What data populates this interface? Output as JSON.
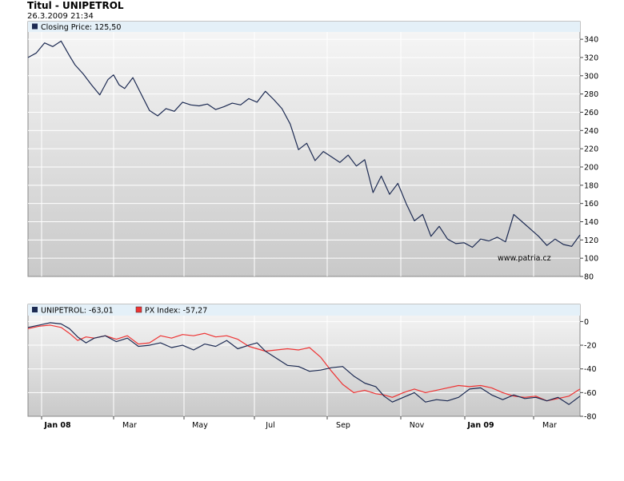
{
  "header": {
    "title": "Titul - UNIPETROL",
    "datetime": "26.3.2009 21:34"
  },
  "watermark": "www.patria.cz",
  "colors": {
    "price_line": "#1c2a52",
    "px_index_line": "#ee3333",
    "legend_bg": "#e4f0f8",
    "plot_bg_top": "#f7f7f7",
    "plot_bg_bottom": "#c9c9c9"
  },
  "chart_data": [
    {
      "type": "line",
      "legend_label": "Closing Price: 125,50",
      "y_ticks": [
        "340",
        "320",
        "300",
        "280",
        "260",
        "240",
        "220",
        "200",
        "180",
        "160",
        "140",
        "120",
        "100",
        "80"
      ],
      "ylim": [
        80,
        348
      ],
      "grid": true,
      "x_tick_labels": [
        "Jan 08",
        "Mar",
        "May",
        "Jul",
        "Sep",
        "Nov",
        "Jan 09",
        "Mar"
      ],
      "series": [
        {
          "name": "Closing Price",
          "x": [
            0,
            1.5,
            3,
            4.5,
            6,
            7.5,
            8.5,
            10,
            11.5,
            13,
            14.5,
            15.5,
            16.5,
            17.5,
            19,
            20.5,
            22,
            23.5,
            25,
            26.5,
            28,
            29.5,
            31,
            32.5,
            34,
            35.5,
            37,
            38.5,
            40,
            41.5,
            43,
            44.5,
            46,
            47.5,
            49,
            50.5,
            52,
            53.5,
            55,
            56.5,
            58,
            59.5,
            61,
            62.5,
            64,
            65.5,
            67,
            68.5,
            70,
            71.5,
            73,
            74.5,
            76,
            77.5,
            79,
            80.5,
            82,
            83.5,
            85,
            86.5,
            88,
            89.5,
            91,
            92.5,
            94,
            95.5,
            97,
            98.5,
            100
          ],
          "y": [
            320,
            325,
            336,
            332,
            338,
            322,
            312,
            302,
            290,
            279,
            296,
            301,
            290,
            286,
            298,
            280,
            262,
            256,
            264,
            261,
            271,
            268,
            267,
            269,
            263,
            266,
            270,
            268,
            275,
            271,
            283,
            274,
            264,
            247,
            219,
            226,
            207,
            217,
            211,
            205,
            213,
            201,
            208,
            172,
            190,
            170,
            182,
            160,
            141,
            148,
            124,
            135,
            121,
            116,
            117,
            112,
            121,
            119,
            123,
            118,
            148,
            140,
            132,
            124,
            114,
            121,
            115,
            113,
            125.5
          ]
        }
      ]
    },
    {
      "type": "line",
      "y_ticks": [
        "0",
        "-20",
        "-40",
        "-60",
        "-80"
      ],
      "ylim": [
        -80,
        5
      ],
      "grid": true,
      "x_tick_labels": [
        "Jan 08",
        "Mar",
        "May",
        "Jul",
        "Sep",
        "Nov",
        "Jan 09",
        "Mar"
      ],
      "series": [
        {
          "name": "UNIPETROL",
          "legend_label": "UNIPETROL: -63,01",
          "color": "#1c2a52",
          "x": [
            0,
            2,
            4,
            6,
            7.5,
            9,
            10.5,
            12,
            14,
            16,
            18,
            20,
            22,
            24,
            26,
            28,
            30,
            32,
            34,
            36,
            38,
            40,
            41.5,
            43,
            45,
            47,
            49,
            51,
            53,
            55,
            57,
            59,
            61,
            63,
            64.5,
            66,
            68,
            70,
            72,
            74,
            76,
            78,
            80,
            82,
            84,
            86,
            88,
            90,
            92,
            94,
            96,
            98,
            100
          ],
          "y": [
            -5,
            -3,
            -1,
            -2,
            -6,
            -13,
            -18,
            -14,
            -12,
            -17,
            -14,
            -21,
            -20,
            -18,
            -22,
            -20,
            -24,
            -19,
            -21,
            -16,
            -23,
            -20,
            -18,
            -25,
            -31,
            -37,
            -38,
            -42,
            -41,
            -39,
            -38,
            -46,
            -52,
            -55,
            -63,
            -68,
            -64,
            -60,
            -68,
            -66,
            -67,
            -64,
            -57,
            -56,
            -62,
            -66,
            -62,
            -65,
            -64,
            -67,
            -64,
            -70,
            -63
          ]
        },
        {
          "name": "PX Index",
          "legend_label": "PX Index: -57,27",
          "color": "#ee3333",
          "x": [
            0,
            2,
            4,
            6,
            7.5,
            9,
            10.5,
            12,
            14,
            16,
            18,
            20,
            22,
            24,
            26,
            28,
            30,
            32,
            34,
            36,
            38,
            40,
            41.5,
            43,
            45,
            47,
            49,
            51,
            53,
            55,
            57,
            59,
            61,
            63,
            64.5,
            66,
            68,
            70,
            72,
            74,
            76,
            78,
            80,
            82,
            84,
            86,
            88,
            90,
            92,
            94,
            96,
            98,
            100
          ],
          "y": [
            -6,
            -4,
            -3,
            -5,
            -10,
            -16,
            -13,
            -14,
            -12,
            -15,
            -12,
            -19,
            -18,
            -12,
            -14,
            -11,
            -12,
            -10,
            -13,
            -12,
            -15,
            -21,
            -23,
            -25,
            -24,
            -23,
            -24,
            -22,
            -30,
            -42,
            -53,
            -60,
            -58,
            -61,
            -62,
            -64,
            -60,
            -57,
            -60,
            -58,
            -56,
            -54,
            -55,
            -54,
            -56,
            -60,
            -63,
            -64,
            -63,
            -67,
            -65,
            -63,
            -57
          ]
        }
      ]
    }
  ]
}
